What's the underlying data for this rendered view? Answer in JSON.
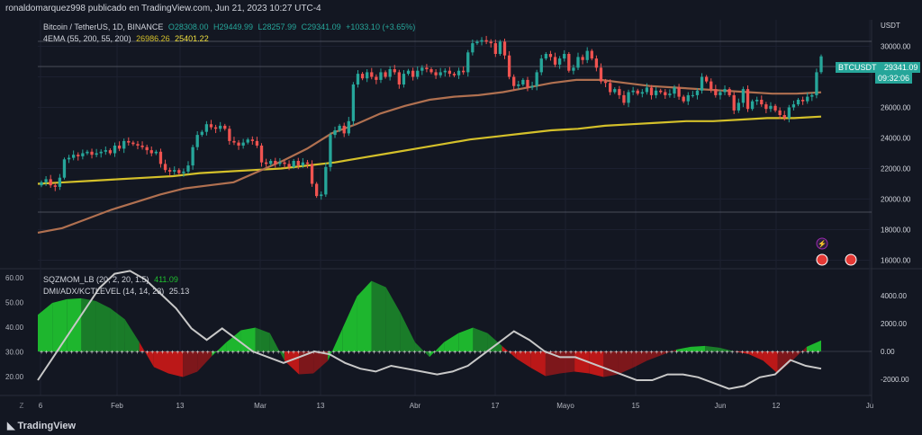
{
  "header": {
    "publish_line": "ronaldomarquez998 publicado en TradingView.com, Jun 21, 2023 10:27 UTC-4"
  },
  "legend": {
    "title": "Bitcoin / TetherUS, 1D, BINANCE",
    "ohlc": [
      "O28308.00",
      "H29449.99",
      "L28257.99",
      "C29341.09",
      "+1033.10 (+3.65%)"
    ],
    "ema_label": "4EMA (55, 200, 55, 200)",
    "ema_values": [
      "26986.26",
      "25401.22"
    ],
    "sqz_label": "SQZMOM_LB (20, 2, 20, 1.5)",
    "sqz_value": "411.09",
    "dmi_label": "DMI/ADX/KCTLEVEL (14, 14, 23)",
    "dmi_value": "25.13"
  },
  "price_axis": {
    "unit": "USDT",
    "ticks": [
      "30000.00",
      "28000.00",
      "26000.00",
      "24000.00",
      "22000.00",
      "20000.00",
      "18000.00",
      "16000.00"
    ]
  },
  "last_price": {
    "symbol": "BTCUSDT",
    "price": "29341.09",
    "countdown": "09:32:06"
  },
  "lower_axes": {
    "left_ticks": [
      "60.00",
      "50.00",
      "40.00",
      "30.00",
      "20.00"
    ],
    "right_ticks": [
      "4000.00",
      "2000.00",
      "0.00",
      "-2000.00"
    ]
  },
  "time_axis": {
    "labels": [
      "6",
      "Feb",
      "13",
      "Mar",
      "13",
      "Abr",
      "17",
      "Mayo",
      "15",
      "Jun",
      "12",
      "Ju"
    ]
  },
  "footer": {
    "brand": "TradingView"
  },
  "colors": {
    "up": "#26a69a",
    "down": "#ef5350",
    "ema55": "#b07050",
    "ema200": "#d4c02a",
    "sqz_up": "#1fbf2f",
    "sqz_down": "#c41818",
    "adx": "#c8c8c8",
    "bg": "#131722"
  },
  "chart_data": {
    "type": "candlestick",
    "title": "Bitcoin / TetherUS, 1D, BINANCE",
    "ylim": [
      15500,
      31500
    ],
    "candles": [
      [
        20900,
        21100
      ],
      [
        21100,
        21300
      ],
      [
        21300,
        20900
      ],
      [
        20900,
        20800
      ],
      [
        20800,
        21400
      ],
      [
        21400,
        22600
      ],
      [
        22600,
        22700
      ],
      [
        22700,
        22900
      ],
      [
        22900,
        22800
      ],
      [
        22800,
        23000
      ],
      [
        23000,
        23100
      ],
      [
        23100,
        22900
      ],
      [
        22900,
        23000
      ],
      [
        23000,
        23100
      ],
      [
        23100,
        23200
      ],
      [
        23200,
        23000
      ],
      [
        23000,
        23500
      ],
      [
        23500,
        23300
      ],
      [
        23300,
        23800
      ],
      [
        23800,
        23700
      ],
      [
        23700,
        23600
      ],
      [
        23600,
        23500
      ],
      [
        23500,
        23400
      ],
      [
        23400,
        23200
      ],
      [
        23200,
        23000
      ],
      [
        23000,
        23100
      ],
      [
        23100,
        22300
      ],
      [
        22300,
        21900
      ],
      [
        21900,
        21800
      ],
      [
        21800,
        21900
      ],
      [
        21900,
        21700
      ],
      [
        21700,
        21800
      ],
      [
        21800,
        22200
      ],
      [
        22200,
        23400
      ],
      [
        23400,
        24200
      ],
      [
        24200,
        24400
      ],
      [
        24400,
        24900
      ],
      [
        24900,
        24700
      ],
      [
        24700,
        24600
      ],
      [
        24600,
        24800
      ],
      [
        24800,
        24600
      ],
      [
        24600,
        23800
      ],
      [
        23800,
        23700
      ],
      [
        23700,
        23500
      ],
      [
        23500,
        23700
      ],
      [
        23700,
        23900
      ],
      [
        23900,
        23800
      ],
      [
        23800,
        23500
      ],
      [
        23500,
        22400
      ],
      [
        22400,
        22300
      ],
      [
        22300,
        22500
      ],
      [
        22500,
        22300
      ],
      [
        22300,
        22400
      ],
      [
        22400,
        22300
      ],
      [
        22300,
        22100
      ],
      [
        22100,
        22500
      ],
      [
        22500,
        22200
      ],
      [
        22200,
        22400
      ],
      [
        22400,
        22300
      ],
      [
        22300,
        21000
      ],
      [
        21000,
        20200
      ],
      [
        20200,
        20300
      ],
      [
        20300,
        22100
      ],
      [
        22100,
        24200
      ],
      [
        24200,
        24500
      ],
      [
        24500,
        24800
      ],
      [
        24800,
        24300
      ],
      [
        24300,
        25100
      ],
      [
        25100,
        27500
      ],
      [
        27500,
        28200
      ],
      [
        28200,
        27900
      ],
      [
        27900,
        28300
      ],
      [
        28300,
        28000
      ],
      [
        28000,
        27800
      ],
      [
        27800,
        28300
      ],
      [
        28300,
        28000
      ],
      [
        28000,
        28500
      ],
      [
        28500,
        28300
      ],
      [
        28300,
        27500
      ],
      [
        27500,
        28200
      ],
      [
        28200,
        28400
      ],
      [
        28400,
        28000
      ],
      [
        28000,
        28400
      ],
      [
        28400,
        28600
      ],
      [
        28600,
        28500
      ],
      [
        28500,
        28300
      ],
      [
        28300,
        28100
      ],
      [
        28100,
        28300
      ],
      [
        28300,
        28400
      ],
      [
        28400,
        28200
      ],
      [
        28200,
        28100
      ],
      [
        28100,
        28400
      ],
      [
        28400,
        28300
      ],
      [
        28300,
        29600
      ],
      [
        29600,
        30200
      ],
      [
        30200,
        30300
      ],
      [
        30300,
        30400
      ],
      [
        30400,
        30300
      ],
      [
        30300,
        30200
      ],
      [
        30200,
        29500
      ],
      [
        29500,
        30300
      ],
      [
        30300,
        29400
      ],
      [
        29400,
        28000
      ],
      [
        28000,
        27400
      ],
      [
        27400,
        27500
      ],
      [
        27500,
        27800
      ],
      [
        27800,
        27300
      ],
      [
        27300,
        27400
      ],
      [
        27400,
        28300
      ],
      [
        28300,
        29200
      ],
      [
        29200,
        29500
      ],
      [
        29500,
        29300
      ],
      [
        29300,
        28800
      ],
      [
        28800,
        29200
      ],
      [
        29200,
        29500
      ],
      [
        29500,
        28400
      ],
      [
        28400,
        28600
      ],
      [
        28600,
        29300
      ],
      [
        29300,
        29100
      ],
      [
        29100,
        29700
      ],
      [
        29700,
        29200
      ],
      [
        29200,
        28600
      ],
      [
        28600,
        27700
      ],
      [
        27700,
        27600
      ],
      [
        27600,
        27000
      ],
      [
        27000,
        27200
      ],
      [
        27200,
        26800
      ],
      [
        26800,
        26300
      ],
      [
        26300,
        27000
      ],
      [
        27000,
        27100
      ],
      [
        27100,
        26900
      ],
      [
        26900,
        27000
      ],
      [
        27000,
        27300
      ],
      [
        27300,
        26800
      ],
      [
        26800,
        27100
      ],
      [
        27100,
        27000
      ],
      [
        27000,
        26800
      ],
      [
        26800,
        26900
      ],
      [
        26900,
        27300
      ],
      [
        27300,
        26700
      ],
      [
        26700,
        26400
      ],
      [
        26400,
        26800
      ],
      [
        26800,
        26800
      ],
      [
        26800,
        27100
      ],
      [
        27100,
        28000
      ],
      [
        28000,
        27700
      ],
      [
        27700,
        27200
      ],
      [
        27200,
        26800
      ],
      [
        26800,
        27000
      ],
      [
        27000,
        27200
      ],
      [
        27200,
        26800
      ],
      [
        26800,
        25800
      ],
      [
        25800,
        26300
      ],
      [
        26300,
        27200
      ],
      [
        27200,
        25900
      ],
      [
        25900,
        26400
      ],
      [
        26400,
        26500
      ],
      [
        26500,
        26200
      ],
      [
        26200,
        25900
      ],
      [
        25900,
        26100
      ],
      [
        26100,
        25800
      ],
      [
        25800,
        25500
      ],
      [
        25500,
        25300
      ],
      [
        25300,
        26000
      ],
      [
        26000,
        26200
      ],
      [
        26200,
        26500
      ],
      [
        26500,
        26400
      ],
      [
        26400,
        26700
      ],
      [
        26700,
        26800
      ],
      [
        26800,
        28300
      ],
      [
        28308,
        29341
      ]
    ],
    "ema55": [
      17800,
      18100,
      18700,
      19300,
      19800,
      20300,
      20700,
      20900,
      21100,
      21800,
      22500,
      23300,
      24300,
      24900,
      25600,
      26100,
      26500,
      26700,
      26800,
      27000,
      27300,
      27600,
      27800,
      27800,
      27600,
      27400,
      27300,
      27200,
      27100,
      27000,
      26900,
      26900,
      26986
    ],
    "ema200": [
      21000,
      21100,
      21200,
      21300,
      21400,
      21500,
      21700,
      21800,
      21900,
      22000,
      22200,
      22400,
      22700,
      23000,
      23300,
      23600,
      23900,
      24100,
      24300,
      24500,
      24600,
      24800,
      24900,
      25000,
      25100,
      25100,
      25200,
      25300,
      25300,
      25401
    ],
    "sqz_hist": [
      40,
      53,
      57,
      58,
      55,
      47,
      35,
      10,
      -17,
      -24,
      -28,
      -22,
      -5,
      10,
      23,
      26,
      20,
      -10,
      -25,
      -24,
      -10,
      25,
      60,
      77,
      70,
      42,
      10,
      -6,
      10,
      20,
      26,
      20,
      6,
      -8,
      -18,
      -27,
      -24,
      -22,
      -24,
      -28,
      -25,
      -18,
      -10,
      -4,
      2,
      5,
      6,
      4,
      0,
      -3,
      -10,
      -24,
      -10,
      5,
      12
    ],
    "adx": [
      20,
      28,
      36,
      44,
      52,
      57,
      58,
      55,
      50,
      45,
      38,
      34,
      38,
      34,
      30,
      28,
      26,
      28,
      30,
      29,
      26,
      24,
      23,
      25,
      24,
      23,
      22,
      23,
      25,
      29,
      33,
      37,
      34,
      30,
      28,
      28,
      26,
      24,
      22,
      20,
      20,
      22,
      22,
      21,
      19,
      17,
      18,
      21,
      22,
      27,
      25,
      24
    ]
  }
}
